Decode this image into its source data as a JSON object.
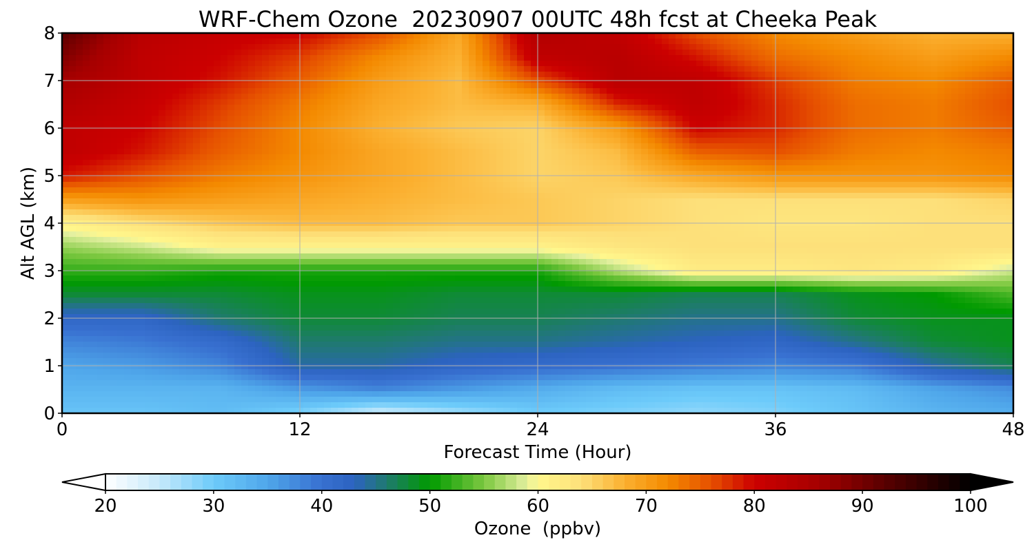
{
  "chart_data": {
    "type": "heatmap",
    "title": "WRF-Chem Ozone  20230907 00UTC 48h fcst at Cheeka Peak",
    "xlabel": "Forecast Time (Hour)",
    "ylabel": "Alt AGL (km)",
    "xlim": [
      0,
      48
    ],
    "ylim": [
      0,
      8
    ],
    "x_ticks": [
      0,
      12,
      24,
      36,
      48
    ],
    "y_ticks": [
      0,
      1,
      2,
      3,
      4,
      5,
      6,
      7,
      8
    ],
    "grid": true,
    "colorbar": {
      "label": "Ozone  (ppbv)",
      "ticks": [
        20,
        30,
        40,
        50,
        60,
        70,
        80,
        90,
        100
      ],
      "range": [
        20,
        100
      ],
      "extend": "both",
      "colors": [
        {
          "value": 20,
          "color": "#ffffff"
        },
        {
          "value": 25,
          "color": "#c6e9fb"
        },
        {
          "value": 30,
          "color": "#6dcbfa"
        },
        {
          "value": 35,
          "color": "#4fa6ea"
        },
        {
          "value": 40,
          "color": "#3870d0"
        },
        {
          "value": 43,
          "color": "#2c63c0"
        },
        {
          "value": 46,
          "color": "#1f7a6e"
        },
        {
          "value": 50,
          "color": "#009a00"
        },
        {
          "value": 55,
          "color": "#7cc840"
        },
        {
          "value": 59,
          "color": "#e4f0a0"
        },
        {
          "value": 60,
          "color": "#fff78c"
        },
        {
          "value": 64,
          "color": "#fde07a"
        },
        {
          "value": 68,
          "color": "#fbb030"
        },
        {
          "value": 72,
          "color": "#f48a00"
        },
        {
          "value": 76,
          "color": "#e65000"
        },
        {
          "value": 80,
          "color": "#cc0000"
        },
        {
          "value": 86,
          "color": "#a50000"
        },
        {
          "value": 92,
          "color": "#5a0000"
        },
        {
          "value": 100,
          "color": "#000000"
        }
      ]
    },
    "grid_x": [
      0,
      4,
      8,
      12,
      16,
      20,
      24,
      28,
      32,
      36,
      40,
      44,
      48
    ],
    "grid_y": [
      0,
      0.5,
      1,
      1.5,
      2,
      2.5,
      3,
      3.5,
      4,
      4.5,
      5,
      5.5,
      6,
      6.5,
      7,
      7.5,
      8
    ],
    "z": [
      [
        31,
        31,
        32,
        29,
        24,
        27,
        30,
        29,
        28,
        29,
        31,
        33,
        34
      ],
      [
        33,
        33,
        33,
        36,
        38,
        36,
        34,
        32,
        31,
        31,
        32,
        35,
        37
      ],
      [
        35,
        36,
        38,
        44,
        44,
        42,
        41,
        40,
        39,
        38,
        39,
        44,
        47
      ],
      [
        38,
        39,
        41,
        46,
        46,
        45,
        45,
        44,
        43,
        42,
        45,
        48,
        49
      ],
      [
        42,
        42,
        46,
        48,
        48,
        47,
        47,
        46,
        45,
        45,
        48,
        49,
        49
      ],
      [
        48,
        48,
        48,
        49,
        49,
        48,
        48,
        48,
        47,
        47,
        49,
        50,
        53
      ],
      [
        52,
        52,
        51,
        51,
        51,
        51,
        51,
        57,
        62,
        62,
        63,
        62,
        58
      ],
      [
        56,
        58,
        61,
        61,
        61,
        61,
        61,
        63,
        64,
        64,
        64,
        64,
        64
      ],
      [
        61,
        64,
        66,
        67,
        67,
        66,
        66,
        65,
        64,
        63,
        63,
        64,
        64
      ],
      [
        70,
        71,
        70,
        69,
        68,
        67,
        66,
        65,
        64,
        64,
        64,
        64,
        65
      ],
      [
        79,
        76,
        73,
        71,
        69,
        67,
        65,
        66,
        69,
        71,
        71,
        71,
        72
      ],
      [
        82,
        79,
        75,
        72,
        69,
        67,
        65,
        67,
        75,
        76,
        73,
        72,
        73
      ],
      [
        82,
        80,
        76,
        72,
        68,
        66,
        65,
        70,
        80,
        78,
        74,
        73,
        75
      ],
      [
        84,
        81,
        77,
        73,
        69,
        67,
        68,
        78,
        82,
        78,
        74,
        73,
        76
      ],
      [
        86,
        82,
        79,
        75,
        70,
        67,
        76,
        83,
        82,
        77,
        73,
        72,
        75
      ],
      [
        89,
        82,
        80,
        77,
        72,
        68,
        82,
        83,
        79,
        74,
        72,
        70,
        72
      ],
      [
        92,
        83,
        81,
        80,
        76,
        69,
        84,
        82,
        76,
        72,
        70,
        68,
        68
      ]
    ]
  }
}
